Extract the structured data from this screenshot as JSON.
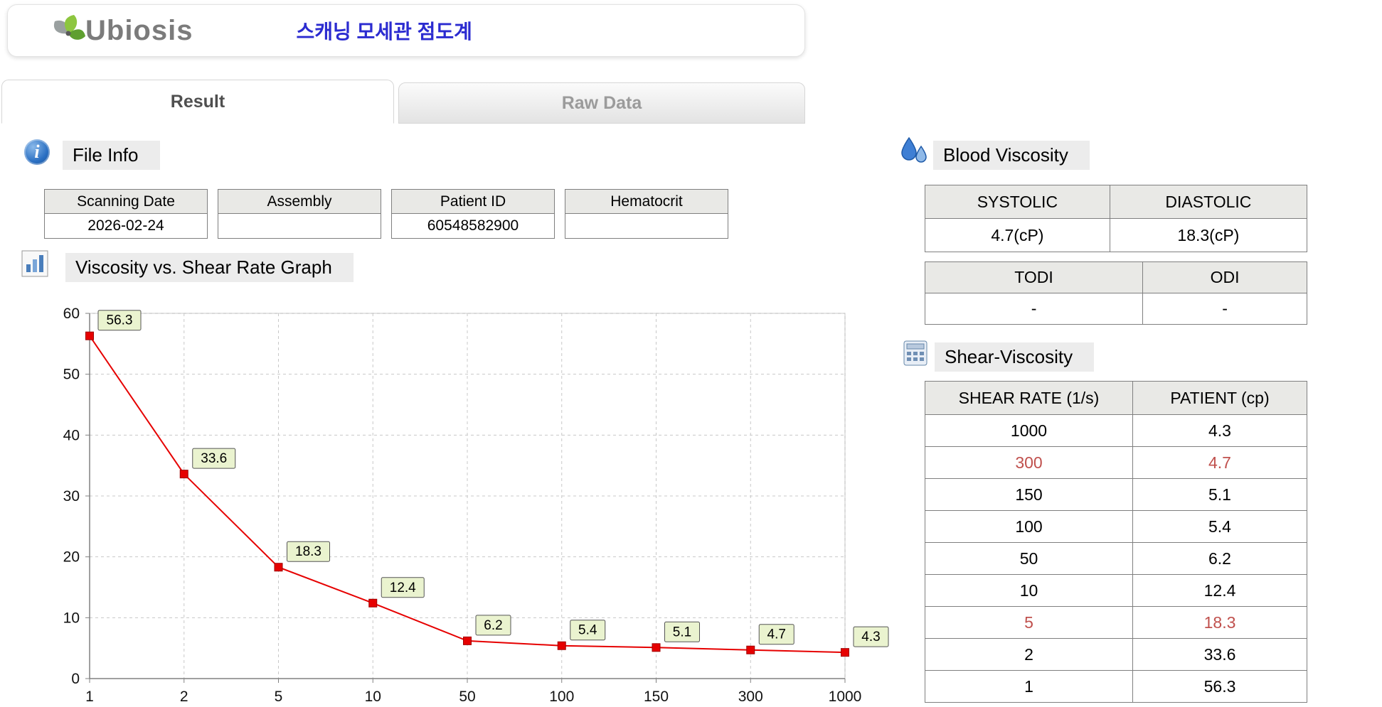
{
  "header": {
    "logo_text": "Ubiosis",
    "app_title": "스캐닝 모세관 점도계"
  },
  "tabs": [
    {
      "label": "Result",
      "active": true
    },
    {
      "label": "Raw Data",
      "active": false
    }
  ],
  "icons": {
    "logo": "leaf-cluster-icon",
    "file_info": "info-icon",
    "graph": "bar-chart-icon",
    "blood_viscosity": "water-drops-icon",
    "shear_viscosity": "calculator-icon"
  },
  "file_info": {
    "section_title": "File Info",
    "fields": [
      {
        "label": "Scanning Date",
        "value": "2026-02-24"
      },
      {
        "label": "Assembly",
        "value": ""
      },
      {
        "label": "Patient ID",
        "value": "60548582900"
      },
      {
        "label": "Hematocrit",
        "value": ""
      }
    ]
  },
  "graph_section": {
    "section_title": "Viscosity vs. Shear Rate Graph"
  },
  "chart_data": {
    "type": "line",
    "title": "Viscosity vs. Shear Rate Graph",
    "xlabel": "",
    "ylabel": "",
    "x_scale": "categorical-log",
    "x": [
      1,
      2,
      5,
      10,
      50,
      100,
      150,
      300,
      1000
    ],
    "x_tick_labels": [
      "1",
      "2",
      "5",
      "10",
      "50",
      "100",
      "150",
      "300",
      "1000"
    ],
    "values": [
      56.3,
      33.6,
      18.3,
      12.4,
      6.2,
      5.4,
      5.1,
      4.7,
      4.3
    ],
    "point_labels": [
      "56.3",
      "33.6",
      "18.3",
      "12.4",
      "6.2",
      "5.4",
      "5.1",
      "4.7",
      "4.3"
    ],
    "ylim": [
      0,
      60
    ],
    "y_ticks": [
      0,
      10,
      20,
      30,
      40,
      50,
      60
    ],
    "grid": true,
    "legend": false,
    "line_color": "#e60000",
    "marker": "square",
    "marker_edge": "#a00000",
    "label_box_bg": "#eaf3cf",
    "label_box_border": "#555555",
    "grid_color": "#c8c8c8",
    "axis_color": "#808080"
  },
  "blood_viscosity": {
    "section_title": "Blood Viscosity",
    "table1": {
      "headers": [
        "SYSTOLIC",
        "DIASTOLIC"
      ],
      "values": [
        "4.7(cP)",
        "18.3(cP)"
      ]
    },
    "table2": {
      "headers": [
        "TODI",
        "ODI"
      ],
      "values": [
        "-",
        "-"
      ]
    }
  },
  "shear_viscosity": {
    "section_title": "Shear-Viscosity",
    "headers": [
      "SHEAR RATE (1/s)",
      "PATIENT (cp)"
    ],
    "rows": [
      {
        "shear_rate": "1000",
        "patient": "4.3",
        "highlight": false
      },
      {
        "shear_rate": "300",
        "patient": "4.7",
        "highlight": true
      },
      {
        "shear_rate": "150",
        "patient": "5.1",
        "highlight": false
      },
      {
        "shear_rate": "100",
        "patient": "5.4",
        "highlight": false
      },
      {
        "shear_rate": "50",
        "patient": "6.2",
        "highlight": false
      },
      {
        "shear_rate": "10",
        "patient": "12.4",
        "highlight": false
      },
      {
        "shear_rate": "5",
        "patient": "18.3",
        "highlight": true
      },
      {
        "shear_rate": "2",
        "patient": "33.6",
        "highlight": false
      },
      {
        "shear_rate": "1",
        "patient": "56.3",
        "highlight": false
      }
    ]
  },
  "colors": {
    "accent_blue": "#2b2bd0",
    "line_red": "#e60000",
    "highlight_red": "#c0504d",
    "table_header_bg": "#e9e9e6",
    "table_border": "#7f7f7f",
    "section_label_bg": "#ececec"
  }
}
